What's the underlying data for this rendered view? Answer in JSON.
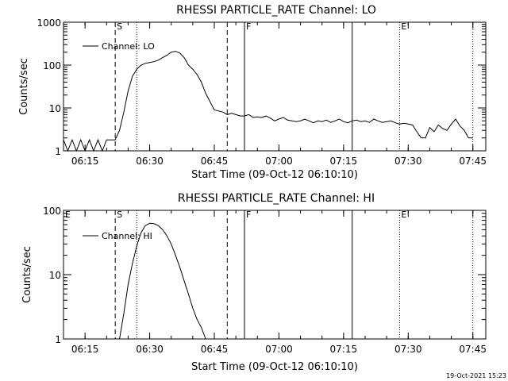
{
  "timestamp": "19-Oct-2021 15:23",
  "chart_data": [
    {
      "type": "line",
      "title": "RHESSI PARTICLE_RATE Channel: LO",
      "xlabel": "Start Time (09-Oct-12 06:10:10)",
      "ylabel": "Counts/sec",
      "yscale": "log",
      "xlim": [
        "06:10",
        "07:48"
      ],
      "ylim": [
        1,
        1000
      ],
      "x_ticks": [
        "06:15",
        "06:30",
        "06:45",
        "07:00",
        "07:15",
        "07:30",
        "07:45"
      ],
      "y_ticks": [
        "1",
        "10",
        "100",
        "1000"
      ],
      "legend": {
        "entries": [
          "Channel: LO"
        ],
        "placement": "top-left"
      },
      "markers": [
        {
          "label": "S",
          "time": "06:22",
          "style": "dashed"
        },
        {
          "label": "",
          "time": "06:27",
          "style": "dotted"
        },
        {
          "label": "",
          "time": "06:48",
          "style": "dashed"
        },
        {
          "label": "F",
          "time": "06:52",
          "style": "solid"
        },
        {
          "label": "",
          "time": "07:17",
          "style": "solid"
        },
        {
          "label": "E",
          "time": "07:28",
          "style": "dotted"
        },
        {
          "label": "",
          "time": "07:45",
          "style": "dotted"
        }
      ],
      "series": [
        {
          "name": "Channel: LO",
          "x": [
            "06:10",
            "06:11",
            "06:12",
            "06:13",
            "06:14",
            "06:15",
            "06:16",
            "06:17",
            "06:18",
            "06:19",
            "06:20",
            "06:21",
            "06:22",
            "06:23",
            "06:24",
            "06:25",
            "06:26",
            "06:27",
            "06:28",
            "06:29",
            "06:30",
            "06:31",
            "06:32",
            "06:33",
            "06:34",
            "06:35",
            "06:36",
            "06:37",
            "06:38",
            "06:39",
            "06:40",
            "06:41",
            "06:42",
            "06:43",
            "06:44",
            "06:45",
            "06:46",
            "06:47",
            "06:48",
            "06:49",
            "06:50",
            "06:51",
            "06:52",
            "06:53",
            "06:54",
            "06:55",
            "06:56",
            "06:57",
            "06:58",
            "06:59",
            "07:00",
            "07:01",
            "07:02",
            "07:03",
            "07:04",
            "07:05",
            "07:06",
            "07:07",
            "07:08",
            "07:09",
            "07:10",
            "07:11",
            "07:12",
            "07:13",
            "07:14",
            "07:15",
            "07:16",
            "07:17",
            "07:18",
            "07:19",
            "07:20",
            "07:21",
            "07:22",
            "07:23",
            "07:24",
            "07:25",
            "07:26",
            "07:27",
            "07:28",
            "07:29",
            "07:30",
            "07:31",
            "07:32",
            "07:33",
            "07:34",
            "07:35",
            "07:36",
            "07:37",
            "07:38",
            "07:39",
            "07:40",
            "07:41",
            "07:42",
            "07:43",
            "07:44",
            "07:45"
          ],
          "y": [
            1.8,
            1.0,
            1.8,
            1.0,
            1.8,
            1.0,
            1.8,
            1.0,
            1.8,
            1.0,
            1.8,
            1.8,
            1.8,
            3,
            8,
            25,
            55,
            80,
            100,
            110,
            115,
            120,
            130,
            150,
            170,
            200,
            210,
            190,
            150,
            100,
            80,
            60,
            40,
            22,
            14,
            9,
            8.5,
            8,
            7,
            7.5,
            7,
            6.5,
            6.5,
            7,
            6,
            6.2,
            6,
            6.5,
            5.8,
            5,
            5.5,
            6,
            5.2,
            5,
            4.8,
            5,
            5.5,
            5,
            4.5,
            5,
            4.8,
            5.2,
            4.6,
            5,
            5.5,
            4.8,
            4.5,
            5,
            5.2,
            4.8,
            5,
            4.6,
            5.5,
            5,
            4.6,
            4.8,
            5,
            4.5,
            4.2,
            4.4,
            4.2,
            4,
            2.8,
            2,
            2,
            3.5,
            2.8,
            4,
            3.3,
            3,
            4.2,
            5.5,
            3.8,
            3,
            2,
            2
          ]
        }
      ]
    },
    {
      "type": "line",
      "title": "RHESSI PARTICLE_RATE Channel: HI",
      "xlabel": "Start Time (09-Oct-12 06:10:10)",
      "ylabel": "Counts/sec",
      "yscale": "log",
      "xlim": [
        "06:10",
        "07:48"
      ],
      "ylim": [
        1,
        100
      ],
      "x_ticks": [
        "06:15",
        "06:30",
        "06:45",
        "07:00",
        "07:15",
        "07:30",
        "07:45"
      ],
      "y_ticks": [
        "1",
        "10",
        "100"
      ],
      "legend": {
        "entries": [
          "Channel: HI"
        ],
        "placement": "top-left"
      },
      "markers": [
        {
          "label": "E",
          "time": "06:10",
          "style": "none"
        },
        {
          "label": "S",
          "time": "06:22",
          "style": "dashed"
        },
        {
          "label": "",
          "time": "06:27",
          "style": "dotted"
        },
        {
          "label": "",
          "time": "06:48",
          "style": "dashed"
        },
        {
          "label": "F",
          "time": "06:52",
          "style": "solid"
        },
        {
          "label": "",
          "time": "07:17",
          "style": "solid"
        },
        {
          "label": "E",
          "time": "07:28",
          "style": "dotted"
        },
        {
          "label": "",
          "time": "07:45",
          "style": "dotted"
        }
      ],
      "series": [
        {
          "name": "Channel: HI",
          "x": [
            "06:23",
            "06:24",
            "06:25",
            "06:26",
            "06:27",
            "06:28",
            "06:29",
            "06:30",
            "06:31",
            "06:32",
            "06:33",
            "06:34",
            "06:35",
            "06:36",
            "06:37",
            "06:38",
            "06:39",
            "06:40",
            "06:41",
            "06:42",
            "06:43"
          ],
          "y": [
            1,
            2.5,
            7,
            15,
            28,
            45,
            58,
            63,
            62,
            58,
            50,
            40,
            30,
            20,
            13,
            8,
            5,
            3,
            2,
            1.5,
            1
          ]
        }
      ]
    }
  ]
}
